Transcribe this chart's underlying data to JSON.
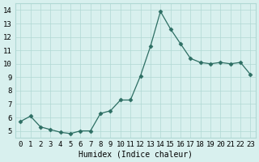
{
  "x": [
    0,
    1,
    2,
    3,
    4,
    5,
    6,
    7,
    8,
    9,
    10,
    11,
    12,
    13,
    14,
    15,
    16,
    17,
    18,
    19,
    20,
    21,
    22,
    23
  ],
  "y": [
    5.7,
    6.1,
    5.3,
    5.1,
    4.9,
    4.8,
    5.0,
    5.0,
    6.3,
    6.5,
    7.3,
    7.3,
    9.1,
    11.3,
    13.9,
    12.6,
    11.5,
    10.4,
    10.1,
    10.0,
    10.1,
    10.0,
    10.1,
    9.2
  ],
  "xlabel": "Humidex (Indice chaleur)",
  "xlim": [
    -0.5,
    23.5
  ],
  "ylim": [
    4.5,
    14.5
  ],
  "yticks": [
    5,
    6,
    7,
    8,
    9,
    10,
    11,
    12,
    13,
    14
  ],
  "xticks": [
    0,
    1,
    2,
    3,
    4,
    5,
    6,
    7,
    8,
    9,
    10,
    11,
    12,
    13,
    14,
    15,
    16,
    17,
    18,
    19,
    20,
    21,
    22,
    23
  ],
  "line_color": "#2d6e63",
  "marker": "D",
  "marker_size": 2.5,
  "bg_color": "#d8f0ee",
  "grid_color": "#b0d8d4",
  "label_fontsize": 7,
  "tick_fontsize": 6.5
}
